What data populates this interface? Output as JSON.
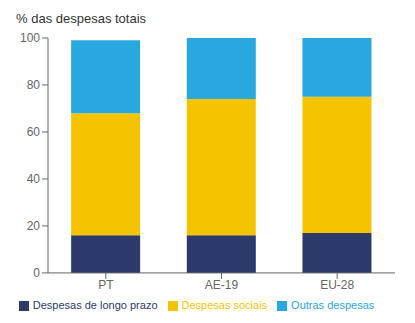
{
  "chart_data": {
    "type": "bar",
    "stacked": true,
    "title": "% das despesas totais",
    "categories": [
      "PT",
      "AE-19",
      "EU-28"
    ],
    "series": [
      {
        "name": "Despesas de longo prazo",
        "color": "#2b3a6b",
        "values": [
          16,
          16,
          17
        ]
      },
      {
        "name": "Despesas sociais",
        "color": "#f5c400",
        "values": [
          52,
          58,
          58
        ]
      },
      {
        "name": "Outras despesas",
        "color": "#29a8e0",
        "values": [
          31,
          26,
          25
        ]
      }
    ],
    "ylim": [
      0,
      100
    ],
    "yticks": [
      0,
      20,
      40,
      60,
      80,
      100
    ],
    "grid": false,
    "legend": "bottom"
  }
}
